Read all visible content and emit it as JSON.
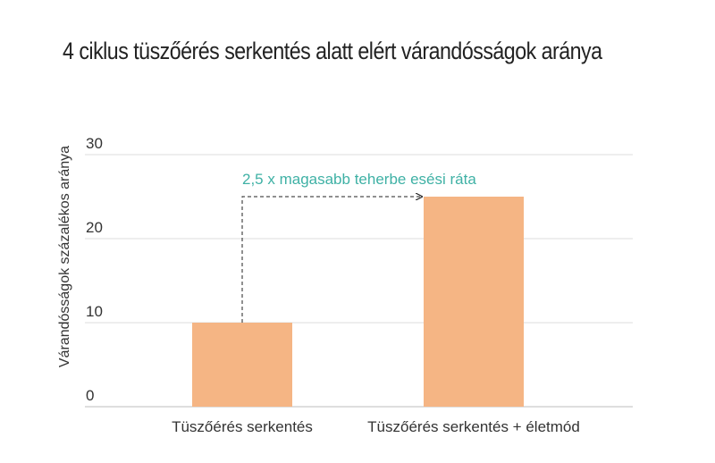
{
  "chart_data": {
    "type": "bar",
    "title": "4 ciklus tüszőérés serkentés alatt elért várandósságok aránya",
    "ylabel": "Várandósságok százalékos aránya",
    "xlabel": "",
    "categories": [
      "Tüszőérés serkentés",
      "Tüszőérés serkentés + életmód"
    ],
    "values": [
      10,
      25
    ],
    "ylim": [
      0,
      30
    ],
    "yticks": [
      "0",
      "10",
      "20",
      "30"
    ],
    "grid": true,
    "bar_color": "#f5b584",
    "annotation": {
      "text": "2,5 x magasabb teherbe esési ráta",
      "color": "#3fb1a5",
      "from_category": 0,
      "to_category": 1
    }
  }
}
